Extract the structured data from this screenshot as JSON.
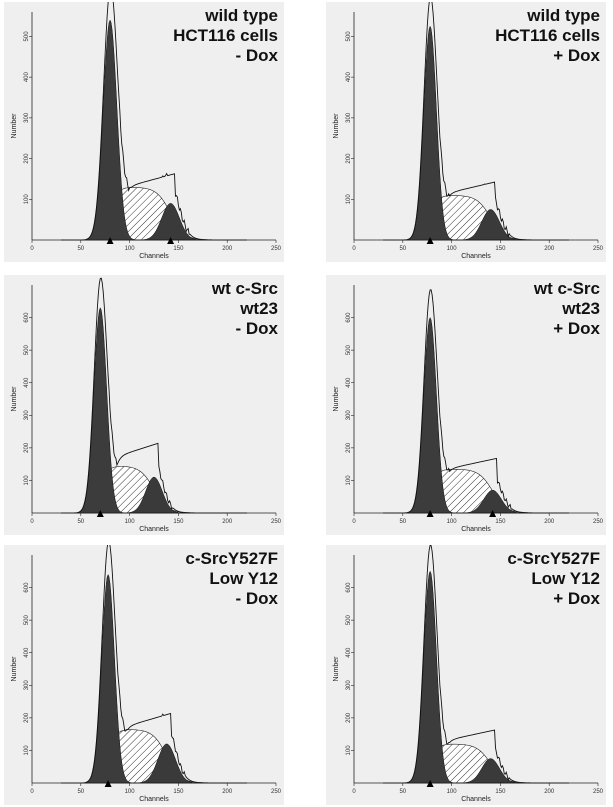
{
  "chart_data": [
    {
      "type": "area",
      "condition": [
        "wild type",
        "HCT116 cells",
        "- Dox"
      ],
      "xlabel": "Channels",
      "ylabel": "Number",
      "xlim": [
        0,
        250
      ],
      "ylim": [
        0,
        560
      ],
      "xticks": [
        0,
        50,
        100,
        150,
        200,
        250
      ],
      "yticks": [
        100,
        200,
        300,
        400,
        500
      ],
      "markers": [
        80,
        142
      ],
      "g1": {
        "mean": 80,
        "sd": 7,
        "peak": 540
      },
      "s": {
        "start": 80,
        "end": 142,
        "peak": 130
      },
      "g2": {
        "mean": 142,
        "sd": 9,
        "peak": 90
      },
      "envelope_peak": 160
    },
    {
      "type": "area",
      "condition": [
        "wild type",
        "HCT116 cells",
        "+ Dox"
      ],
      "xlabel": "Channels",
      "ylabel": "Number",
      "xlim": [
        0,
        250
      ],
      "ylim": [
        0,
        560
      ],
      "xticks": [
        0,
        50,
        100,
        150,
        200,
        250
      ],
      "yticks": [
        100,
        200,
        300,
        400,
        500
      ],
      "markers": [
        78
      ],
      "g1": {
        "mean": 78,
        "sd": 6.5,
        "peak": 525
      },
      "s": {
        "start": 78,
        "end": 140,
        "peak": 110
      },
      "g2": {
        "mean": 140,
        "sd": 9,
        "peak": 75
      },
      "envelope_peak": 140
    },
    {
      "type": "area",
      "condition": [
        "wt c-Src",
        "wt23",
        "- Dox"
      ],
      "xlabel": "Channels",
      "ylabel": "Number",
      "xlim": [
        0,
        250
      ],
      "ylim": [
        0,
        700
      ],
      "xticks": [
        0,
        50,
        100,
        150,
        200,
        250
      ],
      "yticks": [
        100,
        200,
        300,
        400,
        500,
        600
      ],
      "markers": [
        70
      ],
      "g1": {
        "mean": 70,
        "sd": 6.5,
        "peak": 630
      },
      "s": {
        "start": 70,
        "end": 125,
        "peak": 145
      },
      "g2": {
        "mean": 125,
        "sd": 8.5,
        "peak": 110
      },
      "envelope_peak": 210
    },
    {
      "type": "area",
      "condition": [
        "wt c-Src",
        "wt23",
        "+ Dox"
      ],
      "xlabel": "Channels",
      "ylabel": "Number",
      "xlim": [
        0,
        250
      ],
      "ylim": [
        0,
        700
      ],
      "xticks": [
        0,
        50,
        100,
        150,
        200,
        250
      ],
      "yticks": [
        100,
        200,
        300,
        400,
        500,
        600
      ],
      "markers": [
        78,
        142
      ],
      "g1": {
        "mean": 78,
        "sd": 6.5,
        "peak": 600
      },
      "s": {
        "start": 78,
        "end": 142,
        "peak": 135
      },
      "g2": {
        "mean": 142,
        "sd": 9,
        "peak": 70
      },
      "envelope_peak": 165
    },
    {
      "type": "area",
      "condition": [
        "c-SrcY527F",
        "Low Y12",
        "- Dox"
      ],
      "xlabel": "Channels",
      "ylabel": "Number",
      "xlim": [
        0,
        250
      ],
      "ylim": [
        0,
        700
      ],
      "xticks": [
        0,
        50,
        100,
        150,
        200,
        250
      ],
      "yticks": [
        100,
        200,
        300,
        400,
        500,
        600
      ],
      "markers": [
        78
      ],
      "g1": {
        "mean": 78,
        "sd": 6.5,
        "peak": 640
      },
      "s": {
        "start": 78,
        "end": 138,
        "peak": 165
      },
      "g2": {
        "mean": 138,
        "sd": 9,
        "peak": 120
      },
      "envelope_peak": 210
    },
    {
      "type": "area",
      "condition": [
        "c-SrcY527F",
        "Low Y12",
        "+ Dox"
      ],
      "xlabel": "Channels",
      "ylabel": "Number",
      "xlim": [
        0,
        250
      ],
      "ylim": [
        0,
        700
      ],
      "xticks": [
        0,
        50,
        100,
        150,
        200,
        250
      ],
      "yticks": [
        100,
        200,
        300,
        400,
        500,
        600
      ],
      "markers": [
        78
      ],
      "g1": {
        "mean": 78,
        "sd": 6.5,
        "peak": 650
      },
      "s": {
        "start": 78,
        "end": 140,
        "peak": 120
      },
      "g2": {
        "mean": 140,
        "sd": 9,
        "peak": 75
      },
      "envelope_peak": 160
    }
  ]
}
